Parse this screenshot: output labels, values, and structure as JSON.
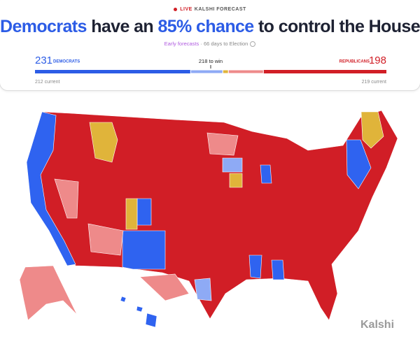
{
  "header": {
    "live": "LIVE",
    "source": "KALSHI FORECAST",
    "title": [
      "Democrats",
      "have an",
      "85% chance",
      "to control the House"
    ],
    "subtitle_link": "Early forecasts",
    "subtitle": "· 66 days to Election"
  },
  "seats": {
    "democrats": {
      "label": "DEMOCRATS",
      "value": 231,
      "current": "212 current"
    },
    "republicans": {
      "label": "REPUBLICANS",
      "value": 198,
      "current": "219 current"
    },
    "threshold": "218 to win"
  },
  "watermark": "Kalshi"
}
